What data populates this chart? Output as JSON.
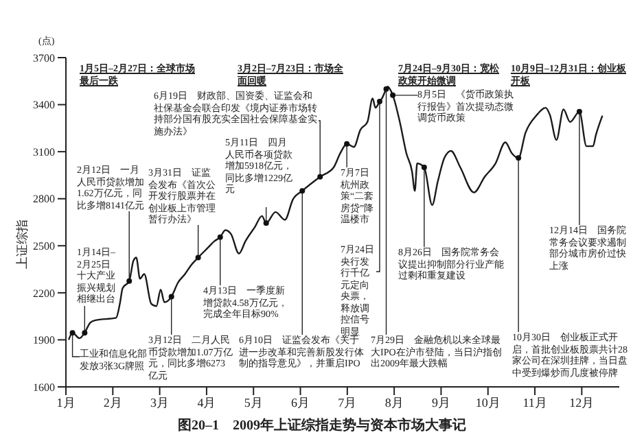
{
  "chart_data": {
    "type": "line",
    "title": "图20–1　2009年上证综指走势与资本市场大事记",
    "ylabel": "上证综指",
    "xlim": [
      1,
      12.8
    ],
    "ylim": [
      1600,
      3700
    ],
    "xticks": [
      {
        "value": 1,
        "label": "1月"
      },
      {
        "value": 2,
        "label": "2月"
      },
      {
        "value": 3,
        "label": "3月"
      },
      {
        "value": 4,
        "label": "4月"
      },
      {
        "value": 5,
        "label": "5月"
      },
      {
        "value": 6,
        "label": "6月"
      },
      {
        "value": 7,
        "label": "7月"
      },
      {
        "value": 8,
        "label": "8月"
      },
      {
        "value": 9,
        "label": "9月"
      },
      {
        "value": 10,
        "label": "10月"
      },
      {
        "value": 11,
        "label": "11月"
      },
      {
        "value": 12,
        "label": "12月"
      }
    ],
    "yticks": [
      1600,
      1900,
      2200,
      2500,
      2800,
      3100,
      3400,
      3700
    ],
    "series": [
      {
        "color": "#1a1a1a",
        "x": [
          1.06,
          1.14,
          1.29,
          1.4,
          1.52,
          1.63,
          2.07,
          2.15,
          2.21,
          2.35,
          2.44,
          2.5,
          2.58,
          2.67,
          2.82,
          2.93,
          3.02,
          3.1,
          3.25,
          3.39,
          3.54,
          3.68,
          3.82,
          4.02,
          4.17,
          4.29,
          4.4,
          4.52,
          4.69,
          4.83,
          5.03,
          5.18,
          5.27,
          5.47,
          5.67,
          5.84,
          6.04,
          6.42,
          6.71,
          6.85,
          6.99,
          7.14,
          7.28,
          7.43,
          7.54,
          7.6,
          7.69,
          7.74,
          7.83,
          7.86,
          7.97,
          8.12,
          8.26,
          8.38,
          8.44,
          8.49,
          8.64,
          8.81,
          8.93,
          9.07,
          9.21,
          9.41,
          9.7,
          9.93,
          10.16,
          10.37,
          10.51,
          10.65,
          10.8,
          11.03,
          11.23,
          11.32,
          11.46,
          11.61,
          11.75,
          11.95,
          12.1,
          12.24,
          12.3,
          12.44
        ],
        "values": [
          1900,
          1945,
          1910,
          1945,
          2010,
          2025,
          2040,
          2130,
          2230,
          2275,
          2405,
          2425,
          2290,
          2320,
          2130,
          2115,
          2220,
          2140,
          2175,
          2265,
          2320,
          2380,
          2425,
          2485,
          2530,
          2555,
          2600,
          2575,
          2450,
          2530,
          2620,
          2690,
          2645,
          2715,
          2665,
          2795,
          2850,
          2940,
          3000,
          3090,
          3150,
          3130,
          3240,
          3290,
          3440,
          3380,
          3420,
          3440,
          3500,
          3515,
          3460,
          3290,
          3090,
          2975,
          2850,
          3025,
          3000,
          2760,
          2910,
          3060,
          3105,
          3000,
          2840,
          2940,
          3025,
          3160,
          3090,
          3060,
          3220,
          3330,
          3380,
          3335,
          3175,
          3370,
          3290,
          3355,
          3135,
          3135,
          3205,
          3330
        ]
      }
    ],
    "annotations": [
      "(点)",
      "1月5日–2月27日：全球市场最后一跌",
      "3月2日–7月23日：市场全面回暖",
      "7月24日–9月30日：宽松政策开始微调",
      "10月9日–12月31日：创业板开板",
      {
        "text": "工业和信息化部发放3张3G牌照",
        "x": 1.14,
        "y": 1945
      },
      {
        "text": "1月14日–2月25日十大产业振兴规划相继出台",
        "x": 1.4,
        "y": 1945
      },
      {
        "text": "2月12日　一月人民币贷款增加1.62万亿元，同比多增8141亿元",
        "x": 2.35,
        "y": 2275
      },
      {
        "text": "3月12日　二月人民币贷款增加1.07万亿元，同比多增6273亿元",
        "x": 3.25,
        "y": 2175
      },
      {
        "text": "3月31日　证监会发布《首次公开发行股票并在创业板上市管理暂行办法》",
        "x": 3.82,
        "y": 2425
      },
      {
        "text": "4月13日　一季度新增贷款4.58万亿元，完成全年目标90%",
        "x": 4.29,
        "y": 2555
      },
      {
        "text": "5月11日　四月人民币各项贷款增加5918亿元，同比多增1229亿元",
        "x": 5.27,
        "y": 2645
      },
      {
        "text": "6月10日　证监会发布《关于进一步改革和完善新股发行体制的指导意见》，并重启IPO",
        "x": 6.04,
        "y": 2850
      },
      {
        "text": "6月19日　财政部、国资委、证监会和社保基金会联合印发《境内证券市场转持部分国有股充实全国社会保障基金实施办法》",
        "x": 6.42,
        "y": 2940
      },
      {
        "text": "7月7日杭州政策“二套房贷”降温楼市",
        "x": 6.99,
        "y": 3150
      },
      {
        "text": "7月24日央行发行千亿元定向央票，释放调控信号明显",
        "x": 7.69,
        "y": 3420
      },
      {
        "text": "7月29日　金融危机以来全球最大IPO在沪市登陆，当日沪指创出2009年最大跌幅",
        "x": 7.83,
        "y": 3500
      },
      {
        "text": "8月5日　《货币政策执行报告》首次提动态微调货币政策",
        "x": 7.97,
        "y": 3460
      },
      {
        "text": "8月26日　国务院常务会议提出抑制部分行业产能过剩和重复建设",
        "x": 8.64,
        "y": 3000
      },
      {
        "text": "10月30日　创业板正式开启，首批创业板股票共计28家公司在深圳挂牌，当日盘中受到爆炒而几度被停牌",
        "x": 10.65,
        "y": 3060
      },
      {
        "text": "12月14日　国务院常务会议要求遏制部分城市房价过快上涨",
        "x": 11.95,
        "y": 3355
      }
    ]
  }
}
